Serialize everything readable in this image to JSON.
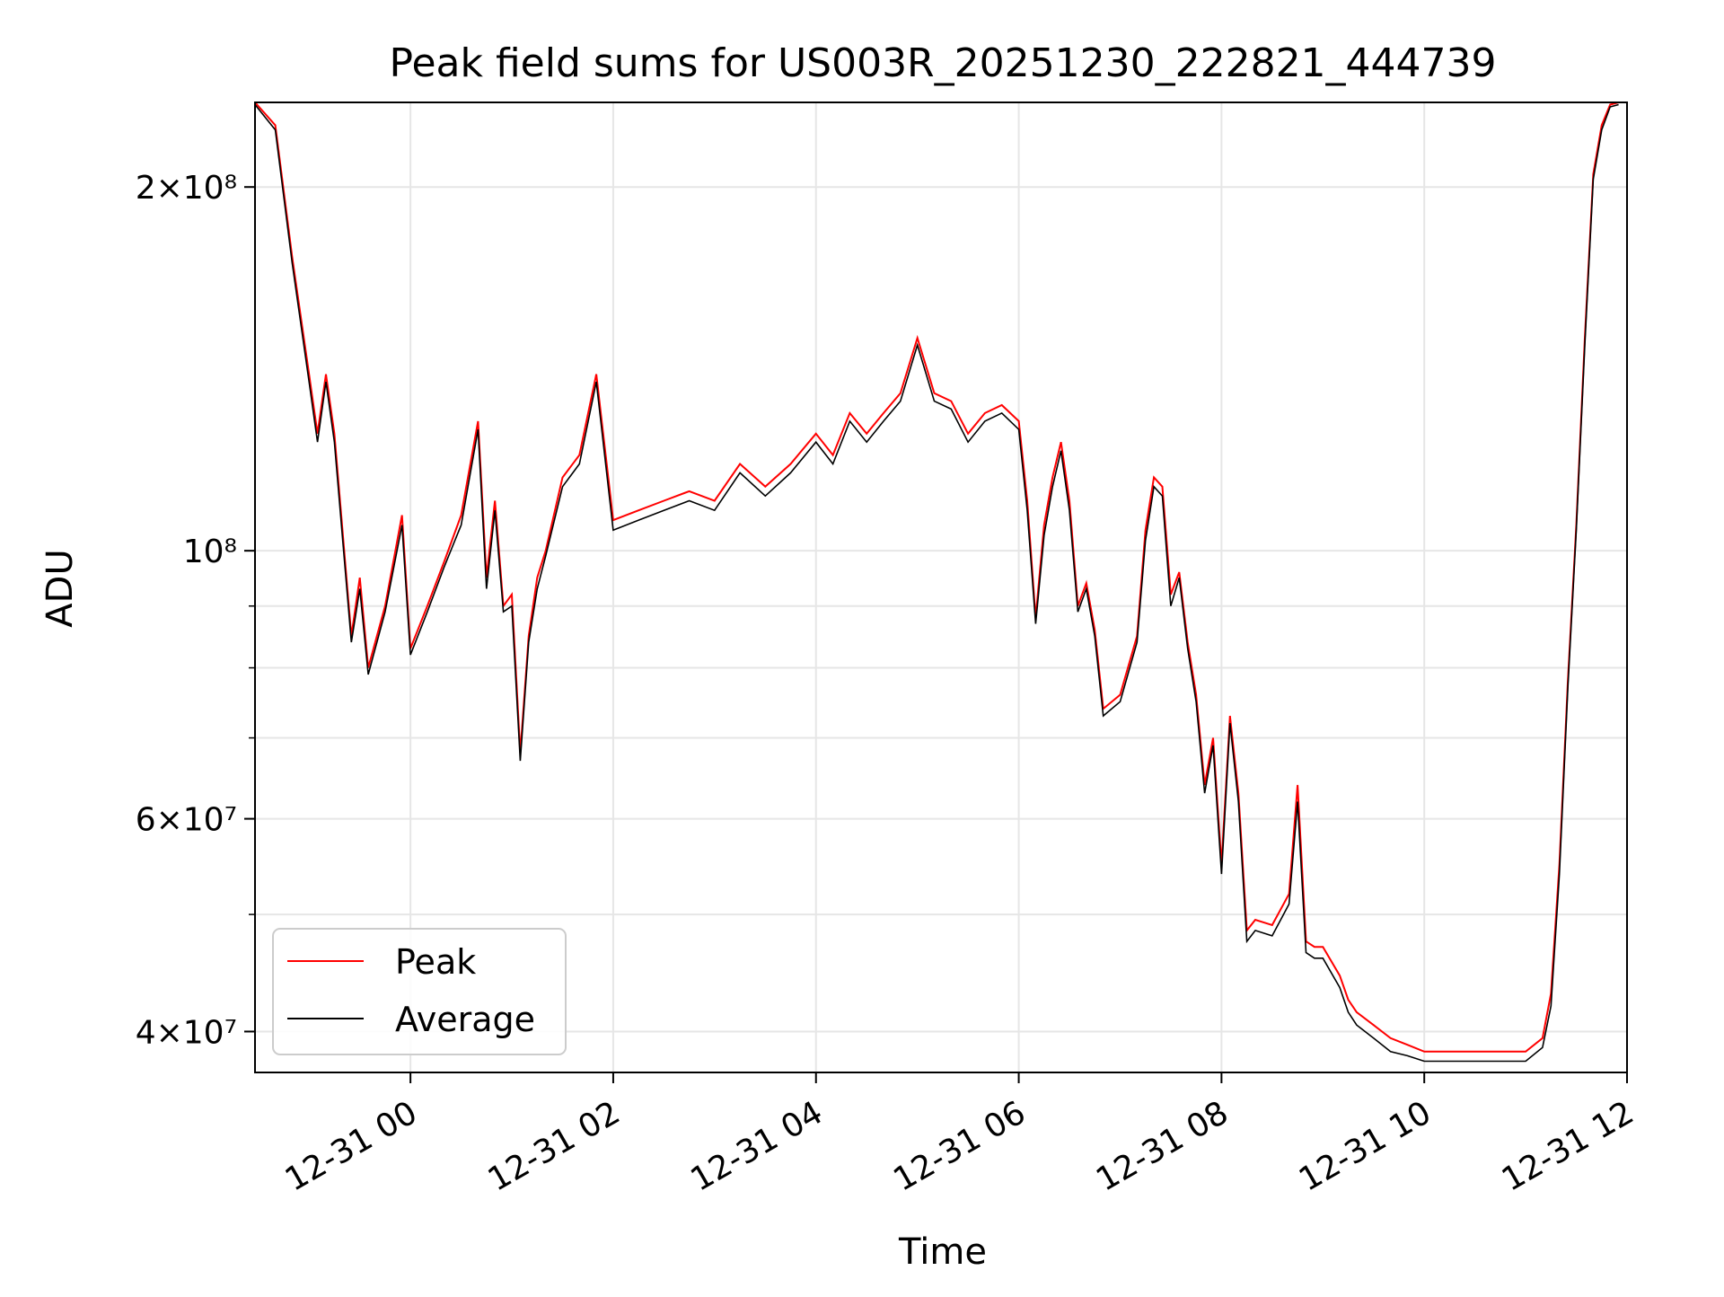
{
  "chart_data": {
    "type": "line",
    "title": "Peak field sums for US003R_20251230_222821_444739",
    "xlabel": "Time",
    "ylabel": "ADU",
    "yscale": "log",
    "ylim": [
      37000000,
      235000000
    ],
    "xlim": [
      "2012-12-30T22:28",
      "2012-12-31T12:00"
    ],
    "grid": true,
    "legend_position": "lower-left",
    "x_ticks": [
      "12-31 00",
      "12-31 02",
      "12-31 04",
      "12-31 06",
      "12-31 08",
      "12-31 10",
      "12-31 12"
    ],
    "y_ticks": [
      {
        "value": 40000000,
        "label": "4×10⁷"
      },
      {
        "value": 60000000,
        "label": "6×10⁷"
      },
      {
        "value": 100000000,
        "label": "10⁸"
      },
      {
        "value": 200000000,
        "label": "2×10⁸"
      }
    ],
    "y_minor_ticks": [
      50000000,
      70000000,
      80000000,
      90000000
    ],
    "x": [
      "22:28",
      "22:40",
      "22:50",
      "23:00",
      "23:05",
      "23:10",
      "23:15",
      "23:25",
      "23:30",
      "23:35",
      "23:45",
      "23:55",
      "00:00",
      "00:10",
      "00:20",
      "00:30",
      "00:40",
      "00:45",
      "00:50",
      "00:55",
      "01:00",
      "01:05",
      "01:10",
      "01:15",
      "01:20",
      "01:30",
      "01:40",
      "01:50",
      "02:00",
      "02:15",
      "02:30",
      "02:45",
      "03:00",
      "03:15",
      "03:30",
      "03:45",
      "04:00",
      "04:10",
      "04:20",
      "04:30",
      "04:40",
      "04:50",
      "05:00",
      "05:10",
      "05:20",
      "05:30",
      "05:40",
      "05:50",
      "06:00",
      "06:05",
      "06:10",
      "06:15",
      "06:20",
      "06:25",
      "06:30",
      "06:35",
      "06:40",
      "06:45",
      "06:50",
      "07:00",
      "07:10",
      "07:15",
      "07:20",
      "07:25",
      "07:30",
      "07:35",
      "07:40",
      "07:45",
      "07:50",
      "07:55",
      "08:00",
      "08:05",
      "08:10",
      "08:15",
      "08:20",
      "08:30",
      "08:40",
      "08:45",
      "08:50",
      "08:55",
      "09:00",
      "09:10",
      "09:15",
      "09:20",
      "09:30",
      "09:40",
      "09:50",
      "10:00",
      "10:20",
      "10:40",
      "11:00",
      "11:10",
      "11:15",
      "11:20",
      "11:25",
      "11:30",
      "11:35",
      "11:40",
      "11:45",
      "11:50",
      "11:55"
    ],
    "series": [
      {
        "name": "Peak",
        "color": "#ff0000",
        "values": [
          235000000,
          225000000,
          175000000,
          140000000,
          125000000,
          140000000,
          125000000,
          85000000,
          95000000,
          80000000,
          90000000,
          107000000,
          83000000,
          90000000,
          98000000,
          107000000,
          128000000,
          95000000,
          110000000,
          90000000,
          92000000,
          68000000,
          85000000,
          95000000,
          100000000,
          115000000,
          120000000,
          140000000,
          106000000,
          108000000,
          110000000,
          112000000,
          110000000,
          118000000,
          113000000,
          118000000,
          125000000,
          120000000,
          130000000,
          125000000,
          130000000,
          135000000,
          150000000,
          135000000,
          133000000,
          125000000,
          130000000,
          132000000,
          128000000,
          110000000,
          88000000,
          105000000,
          115000000,
          123000000,
          110000000,
          90000000,
          94000000,
          86000000,
          74000000,
          76000000,
          85000000,
          104000000,
          115000000,
          113000000,
          92000000,
          96000000,
          84000000,
          76000000,
          64000000,
          70000000,
          55000000,
          73000000,
          63000000,
          48500000,
          49500000,
          49000000,
          52000000,
          64000000,
          47500000,
          47000000,
          47000000,
          44500000,
          42500000,
          41500000,
          40500000,
          39500000,
          39000000,
          38500000,
          38500000,
          38500000,
          38500000,
          39500000,
          43000000,
          55000000,
          78000000,
          105000000,
          150000000,
          205000000,
          225000000,
          234000000,
          235000000
        ]
      },
      {
        "name": "Average",
        "color": "#000000",
        "values": [
          234000000,
          223000000,
          173000000,
          138000000,
          123000000,
          138000000,
          123000000,
          84000000,
          93000000,
          79000000,
          89000000,
          105000000,
          82000000,
          89000000,
          97000000,
          105000000,
          126000000,
          93000000,
          108000000,
          89000000,
          90000000,
          67000000,
          84000000,
          93000000,
          99000000,
          113000000,
          118000000,
          138000000,
          104000000,
          106000000,
          108000000,
          110000000,
          108000000,
          116000000,
          111000000,
          116000000,
          123000000,
          118000000,
          128000000,
          123000000,
          128000000,
          133000000,
          148000000,
          133000000,
          131000000,
          123000000,
          128000000,
          130000000,
          126000000,
          108000000,
          87000000,
          103000000,
          113000000,
          121000000,
          108000000,
          89000000,
          93000000,
          85000000,
          73000000,
          75000000,
          84000000,
          102000000,
          113000000,
          111000000,
          90000000,
          95000000,
          83000000,
          75000000,
          63000000,
          69000000,
          54000000,
          72000000,
          62000000,
          47500000,
          48500000,
          48000000,
          51000000,
          62000000,
          46500000,
          46000000,
          46000000,
          43500000,
          41500000,
          40500000,
          39500000,
          38500000,
          38200000,
          37800000,
          37800000,
          37800000,
          37800000,
          38800000,
          42000000,
          54000000,
          77000000,
          104000000,
          148000000,
          203000000,
          223000000,
          233000000,
          234000000
        ]
      }
    ]
  }
}
